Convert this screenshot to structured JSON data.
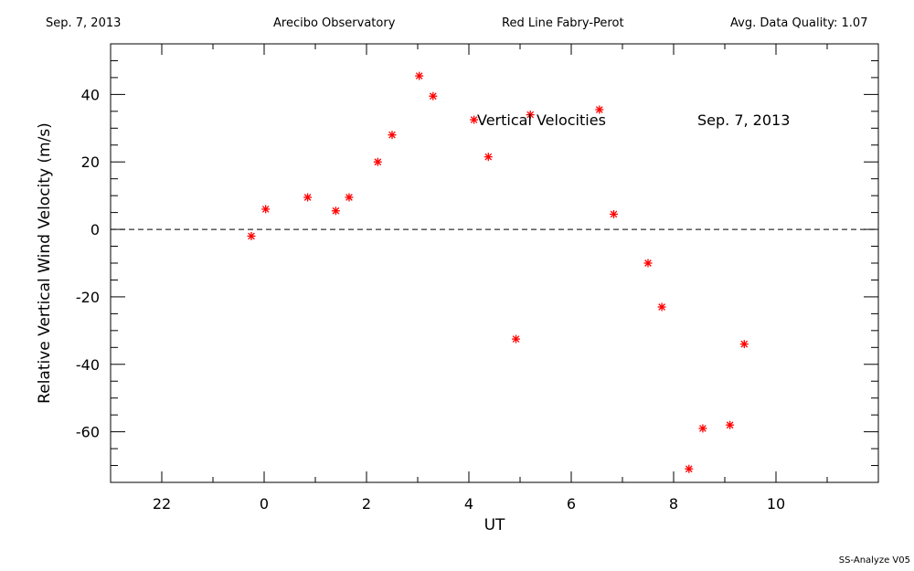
{
  "header": {
    "date": "Sep. 7, 2013",
    "observatory": "Arecibo Observatory",
    "instrument": "Red Line Fabry-Perot",
    "quality": "Avg. Data Quality: 1.07"
  },
  "footer": "SS-Analyze V05",
  "colors": {
    "marker": "#ff0000",
    "axis": "#000000"
  },
  "chart_data": {
    "type": "scatter",
    "title": "Vertical Velocities",
    "annotation": "Sep. 7, 2013",
    "xlabel": "UT",
    "ylabel": "Relative Vertical Wind Velocity (m/s)",
    "xlim": [
      -3,
      12
    ],
    "ylim": [
      -75,
      55
    ],
    "x_ticks": [
      22,
      0,
      2,
      4,
      6,
      8,
      10
    ],
    "x_tick_values": [
      -2,
      0,
      2,
      4,
      6,
      8,
      10
    ],
    "y_ticks": [
      40,
      20,
      0,
      -20,
      -40,
      -60
    ],
    "reference_line": 0,
    "grid": false,
    "series": [
      {
        "marker": "asterisk",
        "x": [
          -0.25,
          0.03,
          0.85,
          1.4,
          1.66,
          2.22,
          2.5,
          3.03,
          3.3,
          4.1,
          4.38,
          4.92,
          5.2,
          6.55,
          6.83,
          7.5,
          7.77,
          8.3,
          8.57,
          9.1,
          9.38
        ],
        "y": [
          -2,
          6,
          9.5,
          5.5,
          9.5,
          20,
          28,
          45.5,
          39.5,
          32.5,
          21.5,
          -32.5,
          34,
          35.5,
          4.5,
          -10,
          -23,
          -71,
          -59,
          -58,
          -34
        ]
      }
    ]
  }
}
